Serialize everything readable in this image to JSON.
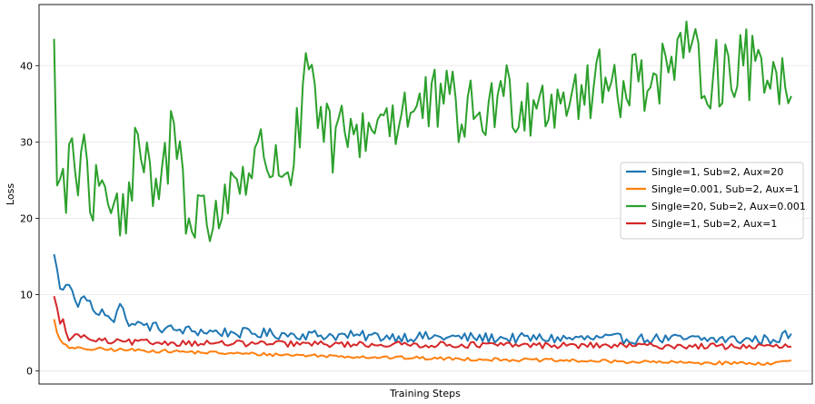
{
  "chart_data": {
    "type": "line",
    "title": "",
    "xlabel": "Training Steps",
    "ylabel": "Loss",
    "ylim": [
      -1.7,
      48
    ],
    "xlim": [
      -5,
      253
    ],
    "yticks": [
      0,
      10,
      20,
      30,
      40
    ],
    "xticks_shown": false,
    "grid": "horizontal",
    "legend_placement": "center-right",
    "series": [
      {
        "name": "Single=1, Sub=2, Aux=20",
        "color": "#1f77b4",
        "anchors": [
          [
            0,
            15.3
          ],
          [
            2,
            10.8
          ],
          [
            4,
            11.3
          ],
          [
            6,
            10.6
          ],
          [
            8,
            8.4
          ],
          [
            10,
            9.8
          ],
          [
            12,
            9.2
          ],
          [
            14,
            7.5
          ],
          [
            16,
            8.1
          ],
          [
            18,
            7.2
          ],
          [
            20,
            6.4
          ],
          [
            22,
            8.8
          ],
          [
            24,
            6.8
          ],
          [
            26,
            6.2
          ],
          [
            30,
            6.0
          ],
          [
            40,
            5.4
          ],
          [
            60,
            5.0
          ],
          [
            80,
            4.8
          ],
          [
            100,
            4.6
          ],
          [
            150,
            4.3
          ],
          [
            200,
            4.2
          ],
          [
            240,
            4.1
          ],
          [
            246,
            4.9
          ]
        ],
        "noise": 0.7
      },
      {
        "name": "Single=0.001, Sub=2, Aux=1",
        "color": "#ff7f0e",
        "anchors": [
          [
            0,
            6.8
          ],
          [
            1,
            5.0
          ],
          [
            3,
            3.6
          ],
          [
            5,
            3.0
          ],
          [
            10,
            2.9
          ],
          [
            30,
            2.7
          ],
          [
            60,
            2.3
          ],
          [
            90,
            2.0
          ],
          [
            120,
            1.7
          ],
          [
            150,
            1.5
          ],
          [
            180,
            1.3
          ],
          [
            210,
            1.1
          ],
          [
            240,
            1.0
          ],
          [
            246,
            1.4
          ]
        ],
        "noise": 0.22
      },
      {
        "name": "Single=20, Sub=2, Aux=0.001",
        "color": "#2ca02c",
        "anchors": [
          [
            0,
            43.5
          ],
          [
            1,
            24.3
          ],
          [
            3,
            26.5
          ],
          [
            4,
            20.7
          ],
          [
            5,
            29.7
          ],
          [
            6,
            30.5
          ],
          [
            8,
            23.0
          ],
          [
            10,
            31.0
          ],
          [
            12,
            20.8
          ],
          [
            14,
            27.0
          ],
          [
            16,
            25.0
          ],
          [
            20,
            22.0
          ],
          [
            24,
            18.0
          ],
          [
            28,
            31.0
          ],
          [
            30,
            26.0
          ],
          [
            35,
            22.5
          ],
          [
            40,
            32.5
          ],
          [
            45,
            20.0
          ],
          [
            50,
            23.0
          ],
          [
            52,
            17.0
          ],
          [
            60,
            25.5
          ],
          [
            70,
            28.0
          ],
          [
            80,
            27.0
          ],
          [
            85,
            39.5
          ],
          [
            90,
            30.0
          ],
          [
            100,
            31.0
          ],
          [
            110,
            33.5
          ],
          [
            120,
            34.0
          ],
          [
            130,
            35.0
          ],
          [
            140,
            33.0
          ],
          [
            150,
            36.0
          ],
          [
            160,
            35.5
          ],
          [
            170,
            36.5
          ],
          [
            180,
            37.0
          ],
          [
            190,
            38.0
          ],
          [
            200,
            39.0
          ],
          [
            210,
            41.0
          ],
          [
            220,
            39.0
          ],
          [
            230,
            40.0
          ],
          [
            240,
            40.5
          ],
          [
            246,
            36.0
          ]
        ],
        "noise": 5.0
      },
      {
        "name": "Single=1, Sub=2, Aux=1",
        "color": "#d62728",
        "anchors": [
          [
            0,
            9.8
          ],
          [
            2,
            6.2
          ],
          [
            3,
            6.8
          ],
          [
            5,
            4.0
          ],
          [
            8,
            4.8
          ],
          [
            12,
            4.1
          ],
          [
            20,
            3.8
          ],
          [
            40,
            3.7
          ],
          [
            60,
            3.6
          ],
          [
            100,
            3.5
          ],
          [
            150,
            3.4
          ],
          [
            200,
            3.3
          ],
          [
            240,
            3.2
          ],
          [
            246,
            3.2
          ]
        ],
        "noise": 0.4
      }
    ]
  }
}
